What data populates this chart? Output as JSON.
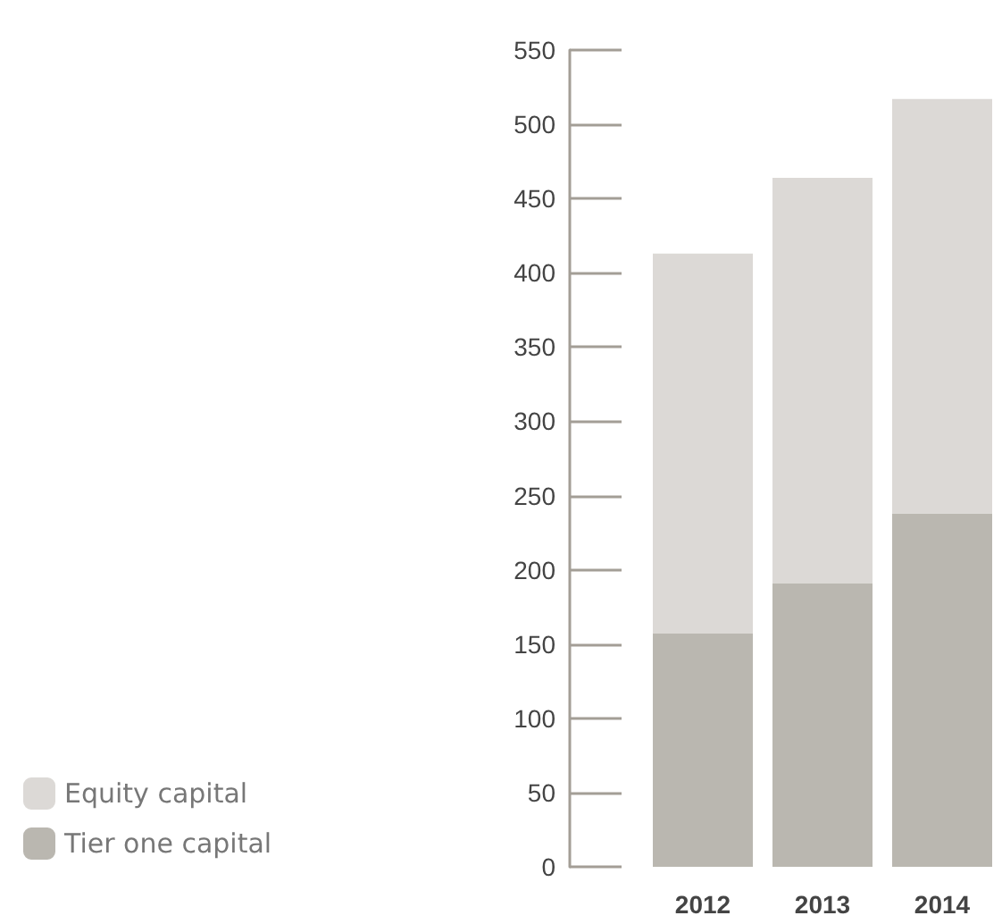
{
  "chart_data": {
    "type": "bar",
    "stacked": true,
    "categories": [
      "2012",
      "2013",
      "2014"
    ],
    "series": [
      {
        "name": "Tier one capital",
        "color": "#bab7b0",
        "values": [
          157,
          191,
          238
        ]
      },
      {
        "name": "Equity capital",
        "color": "#dcd9d6",
        "values": [
          256,
          273,
          279
        ]
      }
    ],
    "ylim": [
      0,
      550
    ],
    "yticks": [
      0,
      50,
      100,
      150,
      200,
      250,
      300,
      350,
      400,
      450,
      500,
      550
    ],
    "grid": false,
    "legend": "bottom left"
  }
}
